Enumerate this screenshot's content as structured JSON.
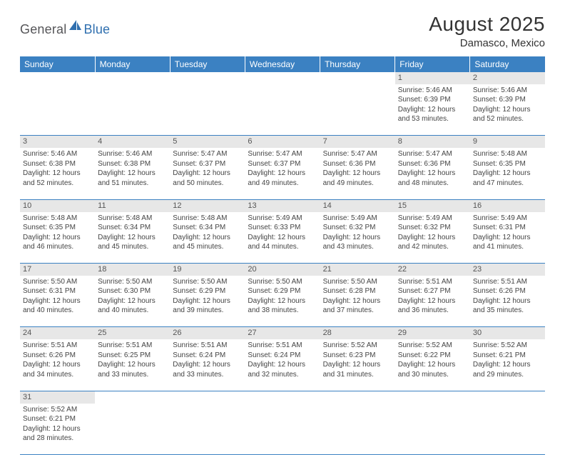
{
  "logo": {
    "dark": "General",
    "blue": "Blue"
  },
  "title": "August 2025",
  "location": "Damasco, Mexico",
  "colors": {
    "header_bg": "#3b81c2",
    "header_text": "#ffffff",
    "daynum_bg": "#e7e7e7",
    "border": "#3b81c2",
    "logo_blue": "#2f6faf",
    "logo_dark": "#555558"
  },
  "weekdays": [
    "Sunday",
    "Monday",
    "Tuesday",
    "Wednesday",
    "Thursday",
    "Friday",
    "Saturday"
  ],
  "weeks": [
    [
      null,
      null,
      null,
      null,
      null,
      {
        "d": "1",
        "sr": "Sunrise: 5:46 AM",
        "ss": "Sunset: 6:39 PM",
        "dl1": "Daylight: 12 hours",
        "dl2": "and 53 minutes."
      },
      {
        "d": "2",
        "sr": "Sunrise: 5:46 AM",
        "ss": "Sunset: 6:39 PM",
        "dl1": "Daylight: 12 hours",
        "dl2": "and 52 minutes."
      }
    ],
    [
      {
        "d": "3",
        "sr": "Sunrise: 5:46 AM",
        "ss": "Sunset: 6:38 PM",
        "dl1": "Daylight: 12 hours",
        "dl2": "and 52 minutes."
      },
      {
        "d": "4",
        "sr": "Sunrise: 5:46 AM",
        "ss": "Sunset: 6:38 PM",
        "dl1": "Daylight: 12 hours",
        "dl2": "and 51 minutes."
      },
      {
        "d": "5",
        "sr": "Sunrise: 5:47 AM",
        "ss": "Sunset: 6:37 PM",
        "dl1": "Daylight: 12 hours",
        "dl2": "and 50 minutes."
      },
      {
        "d": "6",
        "sr": "Sunrise: 5:47 AM",
        "ss": "Sunset: 6:37 PM",
        "dl1": "Daylight: 12 hours",
        "dl2": "and 49 minutes."
      },
      {
        "d": "7",
        "sr": "Sunrise: 5:47 AM",
        "ss": "Sunset: 6:36 PM",
        "dl1": "Daylight: 12 hours",
        "dl2": "and 49 minutes."
      },
      {
        "d": "8",
        "sr": "Sunrise: 5:47 AM",
        "ss": "Sunset: 6:36 PM",
        "dl1": "Daylight: 12 hours",
        "dl2": "and 48 minutes."
      },
      {
        "d": "9",
        "sr": "Sunrise: 5:48 AM",
        "ss": "Sunset: 6:35 PM",
        "dl1": "Daylight: 12 hours",
        "dl2": "and 47 minutes."
      }
    ],
    [
      {
        "d": "10",
        "sr": "Sunrise: 5:48 AM",
        "ss": "Sunset: 6:35 PM",
        "dl1": "Daylight: 12 hours",
        "dl2": "and 46 minutes."
      },
      {
        "d": "11",
        "sr": "Sunrise: 5:48 AM",
        "ss": "Sunset: 6:34 PM",
        "dl1": "Daylight: 12 hours",
        "dl2": "and 45 minutes."
      },
      {
        "d": "12",
        "sr": "Sunrise: 5:48 AM",
        "ss": "Sunset: 6:34 PM",
        "dl1": "Daylight: 12 hours",
        "dl2": "and 45 minutes."
      },
      {
        "d": "13",
        "sr": "Sunrise: 5:49 AM",
        "ss": "Sunset: 6:33 PM",
        "dl1": "Daylight: 12 hours",
        "dl2": "and 44 minutes."
      },
      {
        "d": "14",
        "sr": "Sunrise: 5:49 AM",
        "ss": "Sunset: 6:32 PM",
        "dl1": "Daylight: 12 hours",
        "dl2": "and 43 minutes."
      },
      {
        "d": "15",
        "sr": "Sunrise: 5:49 AM",
        "ss": "Sunset: 6:32 PM",
        "dl1": "Daylight: 12 hours",
        "dl2": "and 42 minutes."
      },
      {
        "d": "16",
        "sr": "Sunrise: 5:49 AM",
        "ss": "Sunset: 6:31 PM",
        "dl1": "Daylight: 12 hours",
        "dl2": "and 41 minutes."
      }
    ],
    [
      {
        "d": "17",
        "sr": "Sunrise: 5:50 AM",
        "ss": "Sunset: 6:31 PM",
        "dl1": "Daylight: 12 hours",
        "dl2": "and 40 minutes."
      },
      {
        "d": "18",
        "sr": "Sunrise: 5:50 AM",
        "ss": "Sunset: 6:30 PM",
        "dl1": "Daylight: 12 hours",
        "dl2": "and 40 minutes."
      },
      {
        "d": "19",
        "sr": "Sunrise: 5:50 AM",
        "ss": "Sunset: 6:29 PM",
        "dl1": "Daylight: 12 hours",
        "dl2": "and 39 minutes."
      },
      {
        "d": "20",
        "sr": "Sunrise: 5:50 AM",
        "ss": "Sunset: 6:29 PM",
        "dl1": "Daylight: 12 hours",
        "dl2": "and 38 minutes."
      },
      {
        "d": "21",
        "sr": "Sunrise: 5:50 AM",
        "ss": "Sunset: 6:28 PM",
        "dl1": "Daylight: 12 hours",
        "dl2": "and 37 minutes."
      },
      {
        "d": "22",
        "sr": "Sunrise: 5:51 AM",
        "ss": "Sunset: 6:27 PM",
        "dl1": "Daylight: 12 hours",
        "dl2": "and 36 minutes."
      },
      {
        "d": "23",
        "sr": "Sunrise: 5:51 AM",
        "ss": "Sunset: 6:26 PM",
        "dl1": "Daylight: 12 hours",
        "dl2": "and 35 minutes."
      }
    ],
    [
      {
        "d": "24",
        "sr": "Sunrise: 5:51 AM",
        "ss": "Sunset: 6:26 PM",
        "dl1": "Daylight: 12 hours",
        "dl2": "and 34 minutes."
      },
      {
        "d": "25",
        "sr": "Sunrise: 5:51 AM",
        "ss": "Sunset: 6:25 PM",
        "dl1": "Daylight: 12 hours",
        "dl2": "and 33 minutes."
      },
      {
        "d": "26",
        "sr": "Sunrise: 5:51 AM",
        "ss": "Sunset: 6:24 PM",
        "dl1": "Daylight: 12 hours",
        "dl2": "and 33 minutes."
      },
      {
        "d": "27",
        "sr": "Sunrise: 5:51 AM",
        "ss": "Sunset: 6:24 PM",
        "dl1": "Daylight: 12 hours",
        "dl2": "and 32 minutes."
      },
      {
        "d": "28",
        "sr": "Sunrise: 5:52 AM",
        "ss": "Sunset: 6:23 PM",
        "dl1": "Daylight: 12 hours",
        "dl2": "and 31 minutes."
      },
      {
        "d": "29",
        "sr": "Sunrise: 5:52 AM",
        "ss": "Sunset: 6:22 PM",
        "dl1": "Daylight: 12 hours",
        "dl2": "and 30 minutes."
      },
      {
        "d": "30",
        "sr": "Sunrise: 5:52 AM",
        "ss": "Sunset: 6:21 PM",
        "dl1": "Daylight: 12 hours",
        "dl2": "and 29 minutes."
      }
    ],
    [
      {
        "d": "31",
        "sr": "Sunrise: 5:52 AM",
        "ss": "Sunset: 6:21 PM",
        "dl1": "Daylight: 12 hours",
        "dl2": "and 28 minutes."
      },
      null,
      null,
      null,
      null,
      null,
      null
    ]
  ]
}
